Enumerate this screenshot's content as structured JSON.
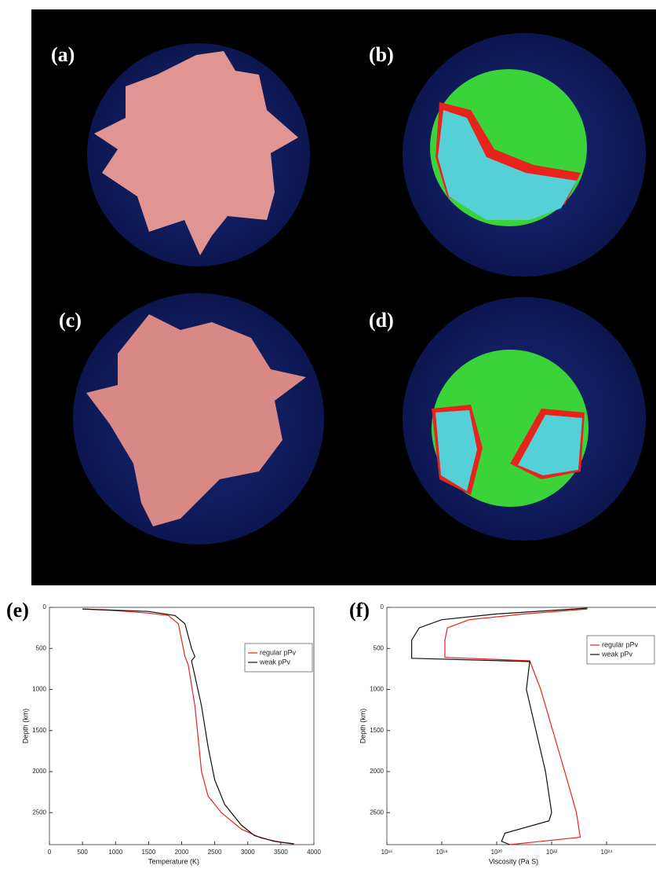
{
  "panels": [
    "(a)",
    "(b)",
    "(c)",
    "(d)"
  ],
  "chart_data": [
    {
      "type": "line",
      "label": "(e)",
      "x_label": "Temperature (K)",
      "y_label": "Depth (km)",
      "xlim": [
        0,
        4000
      ],
      "xticks": [
        0,
        500,
        1000,
        1500,
        2000,
        2500,
        3000,
        3500,
        4000
      ],
      "ylim": [
        0,
        2890
      ],
      "yticks": [
        0,
        500,
        1000,
        1500,
        2000,
        2500
      ],
      "y_inverted": true,
      "legend_position": "upper right",
      "series": [
        {
          "name": "regular pPv",
          "color": "#e8231c",
          "x": [
            500,
            1000,
            1500,
            1800,
            1950,
            2000,
            2050,
            2100,
            2200,
            2250,
            2300,
            2400,
            2600,
            2900,
            3200,
            3500,
            3700
          ],
          "values": [
            20,
            40,
            70,
            100,
            200,
            400,
            600,
            700,
            1200,
            1600,
            2000,
            2300,
            2500,
            2700,
            2810,
            2860,
            2880
          ]
        },
        {
          "name": "weak pPv",
          "color": "#111111",
          "x": [
            500,
            1500,
            1900,
            2050,
            2150,
            2200,
            2150,
            2300,
            2400,
            2500,
            2650,
            2900,
            3100,
            3400,
            3700
          ],
          "values": [
            20,
            50,
            100,
            200,
            500,
            600,
            650,
            1200,
            1700,
            2100,
            2400,
            2650,
            2780,
            2850,
            2880
          ]
        }
      ]
    },
    {
      "type": "line",
      "label": "(f)",
      "x_label": "Viscosity (Pa S)",
      "y_label": "Depth (km)",
      "xlim": [
        1e+16,
        1e+26
      ],
      "log_x": true,
      "xticks": [
        {
          "value": 1e+16,
          "label": "10¹⁶"
        },
        {
          "value": 1e+18,
          "label": "10¹⁸"
        },
        {
          "value": 1e+20,
          "label": "10²⁰"
        },
        {
          "value": 1e+22,
          "label": "10²²"
        },
        {
          "value": 1e+24,
          "label": "10²⁴"
        }
      ],
      "ylim": [
        0,
        2890
      ],
      "yticks": [
        0,
        500,
        1000,
        1500,
        2000,
        2500
      ],
      "y_inverted": true,
      "legend_position": "upper right",
      "series": [
        {
          "name": "regular pPv",
          "color": "#e8231c",
          "x": [
            2e+23,
            1e+21,
            1e+19,
            1.6e+18,
            1.3e+18,
            1.3e+18,
            1.6e+21,
            4e+21,
            3e+22,
            8e+22,
            1.1e+23,
            4e+21,
            3e+20
          ],
          "values": [
            20,
            80,
            150,
            250,
            400,
            610,
            650,
            1000,
            2000,
            2500,
            2800,
            2850,
            2890
          ]
        },
        {
          "name": "weak pPv",
          "color": "#111111",
          "x": [
            2e+23,
            1e+20,
            1e+18,
            1.5e+17,
            8e+16,
            8e+16,
            1.6e+21,
            1.2e+21,
            6e+21,
            1e+22,
            8e+21,
            2e+20,
            1.5e+20,
            3e+20
          ],
          "values": [
            10,
            80,
            150,
            250,
            400,
            620,
            660,
            1000,
            2000,
            2500,
            2600,
            2750,
            2850,
            2890
          ]
        }
      ]
    }
  ]
}
